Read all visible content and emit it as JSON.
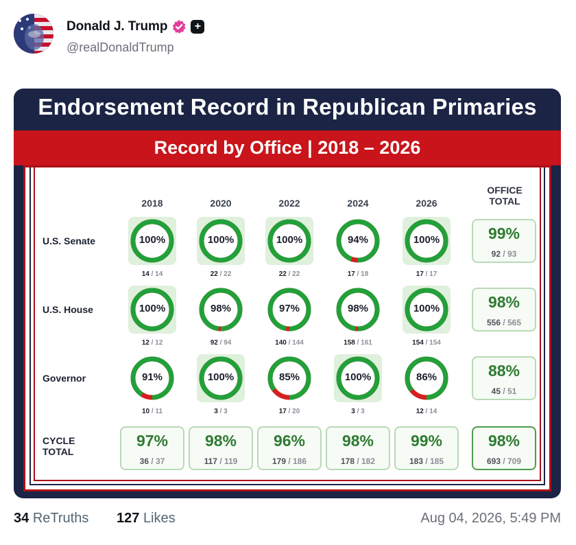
{
  "post": {
    "author_name": "Donald J. Trump",
    "handle": "@realDonaldTrump",
    "retruths_count": "34",
    "retruths_label": "ReTruths",
    "likes_count": "127",
    "likes_label": "Likes",
    "timestamp": "Aug 04, 2026, 5:49 PM",
    "plus_badge": "+"
  },
  "colors": {
    "card_navy": "#1b2444",
    "band_red": "#c8141a",
    "ring_green": "#22a03a",
    "ring_red": "#d62020",
    "verified_pink": "#e0409c"
  },
  "graphic": {
    "title": "Endorsement Record in Republican Primaries",
    "subtitle": "Record by Office | 2018 – 2026",
    "office_total_header": [
      "OFFICE",
      "TOTAL"
    ],
    "cycle_total_label": [
      "CYCLE",
      "TOTAL"
    ],
    "years": [
      "2018",
      "2020",
      "2022",
      "2024",
      "2026"
    ],
    "rows": [
      {
        "label": "U.S. Senate",
        "cells": [
          {
            "pct": "100%",
            "won": "14",
            "total": "14",
            "value": 1.0
          },
          {
            "pct": "100%",
            "won": "22",
            "total": "22",
            "value": 1.0
          },
          {
            "pct": "100%",
            "won": "22",
            "total": "22",
            "value": 1.0
          },
          {
            "pct": "94%",
            "won": "17",
            "total": "18",
            "value": 0.944
          },
          {
            "pct": "100%",
            "won": "17",
            "total": "17",
            "value": 1.0
          }
        ],
        "office_total": {
          "pct": "99%",
          "won": "92",
          "total": "93"
        }
      },
      {
        "label": "U.S. House",
        "cells": [
          {
            "pct": "100%",
            "won": "12",
            "total": "12",
            "value": 1.0
          },
          {
            "pct": "98%",
            "won": "92",
            "total": "94",
            "value": 0.979
          },
          {
            "pct": "97%",
            "won": "140",
            "total": "144",
            "value": 0.972
          },
          {
            "pct": "98%",
            "won": "158",
            "total": "161",
            "value": 0.981
          },
          {
            "pct": "100%",
            "won": "154",
            "total": "154",
            "value": 1.0
          }
        ],
        "office_total": {
          "pct": "98%",
          "won": "556",
          "total": "565"
        }
      },
      {
        "label": "Governor",
        "cells": [
          {
            "pct": "91%",
            "won": "10",
            "total": "11",
            "value": 0.909
          },
          {
            "pct": "100%",
            "won": "3",
            "total": "3",
            "value": 1.0
          },
          {
            "pct": "85%",
            "won": "17",
            "total": "20",
            "value": 0.85
          },
          {
            "pct": "100%",
            "won": "3",
            "total": "3",
            "value": 1.0
          },
          {
            "pct": "86%",
            "won": "12",
            "total": "14",
            "value": 0.857
          }
        ],
        "office_total": {
          "pct": "88%",
          "won": "45",
          "total": "51"
        }
      }
    ],
    "cycle_totals": [
      {
        "pct": "97%",
        "won": "36",
        "total": "37"
      },
      {
        "pct": "98%",
        "won": "117",
        "total": "119"
      },
      {
        "pct": "96%",
        "won": "179",
        "total": "186"
      },
      {
        "pct": "98%",
        "won": "178",
        "total": "182"
      },
      {
        "pct": "99%",
        "won": "183",
        "total": "185"
      }
    ],
    "grand_total": {
      "pct": "98%",
      "won": "693",
      "total": "709"
    }
  }
}
